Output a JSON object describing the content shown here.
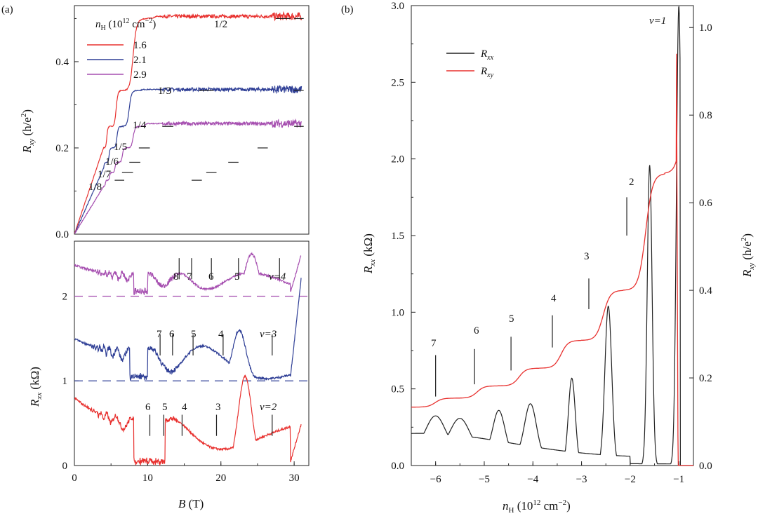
{
  "chart_data": [
    {
      "id": "a-top",
      "panel_label": "(a)",
      "type": "line",
      "ylabel": "R_xy (h/e²)",
      "ylabel_main": "R",
      "ylabel_sub": "xy",
      "ylabel_unit": " (h/e",
      "ylabel_unit_sup": "2",
      "ylabel_unit_close": ")",
      "xlim": [
        0,
        32
      ],
      "ylim": [
        0,
        0.53
      ],
      "yticks": [
        "0.0",
        "0.2",
        "0.4"
      ],
      "ytick_values": [
        0,
        0.2,
        0.4
      ],
      "legend_title": "n_H (10^12 cm^-2)",
      "legend_title_n": "n",
      "legend_title_sub": "H",
      "legend_title_rest": " (10",
      "legend_title_sup": "12",
      "legend_title_rest2": " cm",
      "legend_title_sup2": "−2",
      "legend_title_close": ")",
      "series": [
        {
          "name": "1.6",
          "color": "#e8312f",
          "plateaus": [
            [
              0.125,
              0.1
            ],
            [
              0.1429,
              0.1
            ],
            [
              0.1667,
              0.1
            ],
            [
              0.2,
              0.12
            ],
            [
              0.25,
              0.1
            ],
            [
              0.3333,
              0.12
            ],
            [
              0.5,
              0.12
            ]
          ],
          "x_end": 31
        },
        {
          "name": "2.1",
          "color": "#2f3f96",
          "plateaus": [
            [
              0.2,
              0.08
            ],
            [
              0.25,
              0.1
            ],
            [
              0.3333,
              0.12
            ]
          ],
          "x_end": 31
        },
        {
          "name": "2.9",
          "color": "#a64fb0",
          "plateaus": [
            [
              0.1429,
              0.06
            ],
            [
              0.1667,
              0.08
            ],
            [
              0.2,
              0.1
            ],
            [
              0.25,
              0.12
            ]
          ],
          "x_end": 31
        }
      ],
      "annotations": [
        "1/2",
        "1/3",
        "1/4",
        "1/5",
        "1/6",
        "1/7",
        "1/8"
      ]
    },
    {
      "id": "a-bottom",
      "type": "line",
      "xlabel": "B (T)",
      "xlabel_main": "B",
      "xlabel_unit": " (T)",
      "ylabel": "R_xx (kΩ)",
      "ylabel_main": "R",
      "ylabel_sub": "xx",
      "ylabel_unit": " (kΩ)",
      "xlim": [
        0,
        32
      ],
      "ylim": [
        0,
        2.65
      ],
      "xticks": [
        "0",
        "10",
        "20",
        "30"
      ],
      "xtick_values": [
        0,
        10,
        20,
        30
      ],
      "yticks": [
        "0",
        "1",
        "2"
      ],
      "ytick_values": [
        0,
        1,
        2
      ],
      "series": [
        {
          "name": "1.6",
          "color": "#e8312f",
          "offset": 0
        },
        {
          "name": "2.1",
          "color": "#2f3f96",
          "offset": 1
        },
        {
          "name": "2.9",
          "color": "#a64fb0",
          "offset": 2
        }
      ],
      "annotations": {
        "purple": [
          "8",
          "7",
          "6",
          "5",
          "ν=4"
        ],
        "blue": [
          "7",
          "6",
          "5",
          "4",
          "ν=3"
        ],
        "red": [
          "6",
          "5",
          "4",
          "3",
          "ν=2"
        ]
      }
    },
    {
      "id": "b",
      "panel_label": "(b)",
      "type": "line",
      "xlabel": "n_H (10^12 cm^-2)",
      "xlabel_n": "n",
      "xlabel_sub": "H",
      "xlabel_rest": " (10",
      "xlabel_sup": "12",
      "xlabel_rest2": " cm",
      "xlabel_sup2": "−2",
      "xlabel_close": ")",
      "ylabel_left": "R_xx (kΩ)",
      "ylabel_left_main": "R",
      "ylabel_left_sub": "xx",
      "ylabel_left_unit": " (kΩ)",
      "ylabel_right": "R_xy (h/e²)",
      "ylabel_right_main": "R",
      "ylabel_right_sub": "xy",
      "ylabel_right_unit": " (h/e",
      "ylabel_right_sup": "2",
      "ylabel_right_close": ")",
      "xlim": [
        -6.5,
        -0.7
      ],
      "ylim_left": [
        0,
        3.0
      ],
      "ylim_right": [
        0,
        1.05
      ],
      "xticks": [
        "−6",
        "−5",
        "−4",
        "−3",
        "−2",
        "−1"
      ],
      "xtick_values": [
        -6,
        -5,
        -4,
        -3,
        -2,
        -1
      ],
      "yticks_left": [
        "0.0",
        "0.5",
        "1.0",
        "1.5",
        "2.0",
        "2.5",
        "3.0"
      ],
      "ytick_values_left": [
        0,
        0.5,
        1.0,
        1.5,
        2.0,
        2.5,
        3.0
      ],
      "yticks_right": [
        "0.0",
        "0.2",
        "0.4",
        "0.6",
        "0.8",
        "1.0"
      ],
      "ytick_values_right": [
        0,
        0.2,
        0.4,
        0.6,
        0.8,
        1.0
      ],
      "legend": [
        {
          "name": "R_xx",
          "main": "R",
          "sub": "xx",
          "color": "#222222"
        },
        {
          "name": "R_xy",
          "main": "R",
          "sub": "xy",
          "color": "#e8312f"
        }
      ],
      "rxx_peaks": [
        {
          "x": -6.0,
          "y": 0.22
        },
        {
          "x": -5.5,
          "y": 0.21
        },
        {
          "x": -4.7,
          "y": 0.28
        },
        {
          "x": -4.05,
          "y": 0.34
        },
        {
          "x": -3.2,
          "y": 0.57
        },
        {
          "x": -2.45,
          "y": 1.04
        },
        {
          "x": -1.6,
          "y": 1.96
        },
        {
          "x": -1.0,
          "y": 3.0
        }
      ],
      "rxy_levels": [
        {
          "nu": 7,
          "x0": -6.5,
          "x1": -5.8,
          "y": 0.1429
        },
        {
          "nu": 6,
          "x0": -5.6,
          "x1": -5.0,
          "y": 0.1667
        },
        {
          "nu": 5,
          "x0": -4.7,
          "x1": -4.2,
          "y": 0.2
        },
        {
          "nu": 4,
          "x0": -3.9,
          "x1": -3.4,
          "y": 0.25
        },
        {
          "nu": 3,
          "x0": -3.0,
          "x1": -2.6,
          "y": 0.3333
        },
        {
          "nu": 2,
          "x0": -2.3,
          "x1": -1.8,
          "y": 0.5
        },
        {
          "nu": 1,
          "x0": -1.45,
          "x1": -1.0,
          "y": 1.0
        }
      ],
      "annotations": [
        "7",
        "6",
        "5",
        "4",
        "3",
        "2",
        "ν=1"
      ]
    }
  ]
}
